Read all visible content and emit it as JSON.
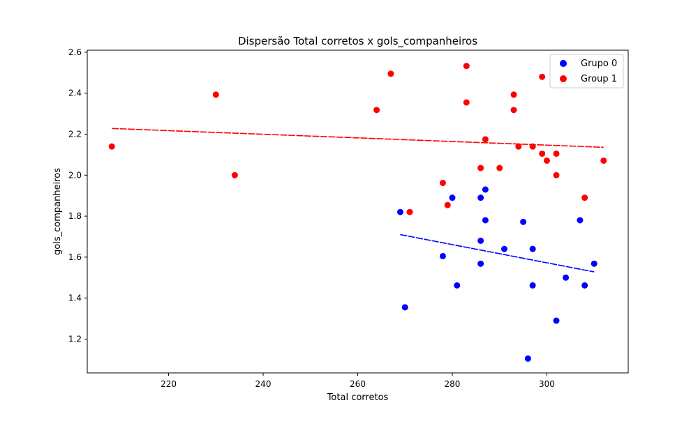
{
  "chart_data": {
    "type": "scatter",
    "title": "Dispersão Total corretos x gols_companheiros",
    "xlabel": "Total corretos",
    "ylabel": "gols_companheiros",
    "xlim": [
      202.8,
      317.2
    ],
    "ylim": [
      1.035,
      2.61
    ],
    "xticks": [
      220,
      240,
      260,
      280,
      300
    ],
    "yticks": [
      1.2,
      1.4,
      1.6,
      1.8,
      2.0,
      2.2,
      2.4,
      2.6
    ],
    "xtick_labels": [
      "220",
      "240",
      "260",
      "280",
      "300"
    ],
    "ytick_labels": [
      "1.2",
      "1.4",
      "1.6",
      "1.8",
      "2.0",
      "2.2",
      "2.4",
      "2.6"
    ],
    "grid": false,
    "legend_position": "top-right",
    "series": [
      {
        "name": "Grupo 0",
        "color": "#0000ff",
        "points": [
          [
            269,
            1.82
          ],
          [
            270,
            1.355
          ],
          [
            278,
            1.605
          ],
          [
            280,
            1.89
          ],
          [
            281,
            1.462
          ],
          [
            286,
            1.89
          ],
          [
            286,
            1.68
          ],
          [
            286,
            1.568
          ],
          [
            287,
            1.93
          ],
          [
            287,
            1.78
          ],
          [
            291,
            1.64
          ],
          [
            295,
            1.772
          ],
          [
            296,
            1.105
          ],
          [
            297,
            1.64
          ],
          [
            297,
            1.462
          ],
          [
            302,
            1.29
          ],
          [
            304,
            1.5
          ],
          [
            307,
            1.78
          ],
          [
            308,
            1.462
          ],
          [
            310,
            1.568
          ]
        ],
        "trend": [
          [
            269,
            1.71
          ],
          [
            310,
            1.528
          ]
        ]
      },
      {
        "name": "Group 1",
        "color": "#ff0000",
        "points": [
          [
            208,
            2.14
          ],
          [
            230,
            2.393
          ],
          [
            234,
            2.0
          ],
          [
            264,
            2.318
          ],
          [
            267,
            2.495
          ],
          [
            271,
            1.82
          ],
          [
            278,
            1.962
          ],
          [
            279,
            1.854
          ],
          [
            283,
            2.533
          ],
          [
            283,
            2.355
          ],
          [
            286,
            2.035
          ],
          [
            287,
            2.175
          ],
          [
            290,
            2.035
          ],
          [
            293,
            2.393
          ],
          [
            293,
            2.318
          ],
          [
            294,
            2.14
          ],
          [
            297,
            2.14
          ],
          [
            299,
            2.48
          ],
          [
            299,
            2.105
          ],
          [
            300,
            2.071
          ],
          [
            302,
            2.105
          ],
          [
            302,
            2.0
          ],
          [
            308,
            1.89
          ],
          [
            312,
            2.071
          ]
        ],
        "trend": [
          [
            208,
            2.228
          ],
          [
            312,
            2.136
          ]
        ]
      }
    ]
  }
}
